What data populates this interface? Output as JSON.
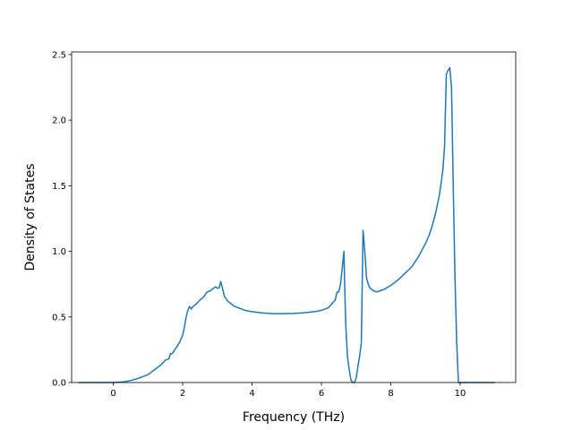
{
  "chart_data": {
    "type": "line",
    "title": "",
    "xlabel": "Frequency (THz)",
    "ylabel": "Density of States",
    "xlim": [
      -1.2,
      11.6
    ],
    "ylim": [
      0,
      2.52
    ],
    "xticks": [
      0,
      2,
      4,
      6,
      8,
      10
    ],
    "yticks": [
      0.0,
      0.5,
      1.0,
      1.5,
      2.0,
      2.5
    ],
    "xtick_labels": [
      "0",
      "2",
      "4",
      "6",
      "8",
      "10"
    ],
    "ytick_labels": [
      "0.0",
      "0.5",
      "1.0",
      "1.5",
      "2.0",
      "2.5"
    ],
    "grid": false,
    "legend": "none",
    "line_color": "#1f77b4",
    "series": [
      {
        "x": [
          -1.0,
          -0.5,
          0.0,
          0.3,
          0.5,
          0.7,
          0.9,
          1.0,
          1.1,
          1.2,
          1.3,
          1.4,
          1.5,
          1.6,
          1.65,
          1.7,
          1.8,
          1.9,
          2.0,
          2.05,
          2.1,
          2.15,
          2.2,
          2.25,
          2.3,
          2.4,
          2.5,
          2.6,
          2.7,
          2.8,
          2.9,
          2.95,
          3.0,
          3.05,
          3.1,
          3.2,
          3.3,
          3.5,
          3.8,
          4.0,
          4.3,
          4.6,
          4.9,
          5.2,
          5.5,
          5.8,
          6.0,
          6.2,
          6.4,
          6.45,
          6.5,
          6.55,
          6.6,
          6.63,
          6.65,
          6.67,
          6.7,
          6.75,
          6.8,
          6.85,
          6.9,
          6.95,
          7.0,
          7.05,
          7.1,
          7.15,
          7.2,
          7.25,
          7.3,
          7.35,
          7.4,
          7.5,
          7.6,
          7.7,
          7.8,
          8.0,
          8.2,
          8.4,
          8.6,
          8.8,
          9.0,
          9.1,
          9.2,
          9.3,
          9.4,
          9.45,
          9.5,
          9.55,
          9.6,
          9.65,
          9.7,
          9.75,
          9.8,
          9.85,
          9.9,
          9.95,
          10.0,
          10.5,
          11.0
        ],
        "y": [
          0.0,
          0.0,
          0.0,
          0.005,
          0.015,
          0.03,
          0.05,
          0.06,
          0.08,
          0.1,
          0.12,
          0.14,
          0.17,
          0.18,
          0.22,
          0.22,
          0.26,
          0.3,
          0.36,
          0.42,
          0.5,
          0.55,
          0.58,
          0.56,
          0.58,
          0.6,
          0.63,
          0.65,
          0.69,
          0.7,
          0.72,
          0.73,
          0.72,
          0.72,
          0.77,
          0.66,
          0.62,
          0.58,
          0.55,
          0.54,
          0.53,
          0.525,
          0.525,
          0.527,
          0.532,
          0.54,
          0.55,
          0.57,
          0.63,
          0.69,
          0.69,
          0.75,
          0.87,
          0.95,
          1.0,
          0.75,
          0.45,
          0.2,
          0.1,
          0.02,
          0.0,
          0.0,
          0.03,
          0.12,
          0.2,
          0.3,
          1.16,
          1.0,
          0.8,
          0.75,
          0.72,
          0.7,
          0.69,
          0.7,
          0.71,
          0.74,
          0.78,
          0.83,
          0.88,
          0.96,
          1.06,
          1.12,
          1.2,
          1.3,
          1.43,
          1.52,
          1.62,
          1.8,
          2.35,
          2.38,
          2.4,
          2.25,
          1.5,
          0.8,
          0.3,
          0.0,
          0.0,
          0.0,
          0.0
        ]
      }
    ]
  }
}
